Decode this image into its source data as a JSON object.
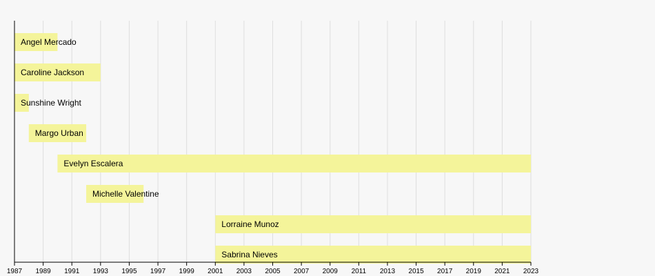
{
  "chart_data": {
    "type": "bar",
    "subtype": "timeline",
    "orientation": "horizontal",
    "xlim": [
      1987,
      2023
    ],
    "x_ticks": [
      "1987",
      "1989",
      "1991",
      "1993",
      "1995",
      "1997",
      "1999",
      "2001",
      "2003",
      "2005",
      "2007",
      "2009",
      "2011",
      "2013",
      "2015",
      "2017",
      "2019",
      "2021",
      "2023"
    ],
    "grid": true,
    "bar_color": "#f4f49a",
    "series": [
      {
        "label": "Angel Mercado",
        "start": 1987,
        "end": 1990
      },
      {
        "label": "Caroline Jackson",
        "start": 1987,
        "end": 1993
      },
      {
        "label": "Sunshine Wright",
        "start": 1987,
        "end": 1988
      },
      {
        "label": "Margo Urban",
        "start": 1988,
        "end": 1992
      },
      {
        "label": "Evelyn Escalera",
        "start": 1990,
        "end": 2023
      },
      {
        "label": "Michelle Valentine",
        "start": 1992,
        "end": 1996
      },
      {
        "label": "Lorraine Munoz",
        "start": 2001,
        "end": 2023
      },
      {
        "label": "Sabrina Nieves",
        "start": 2001,
        "end": 2023
      }
    ]
  }
}
